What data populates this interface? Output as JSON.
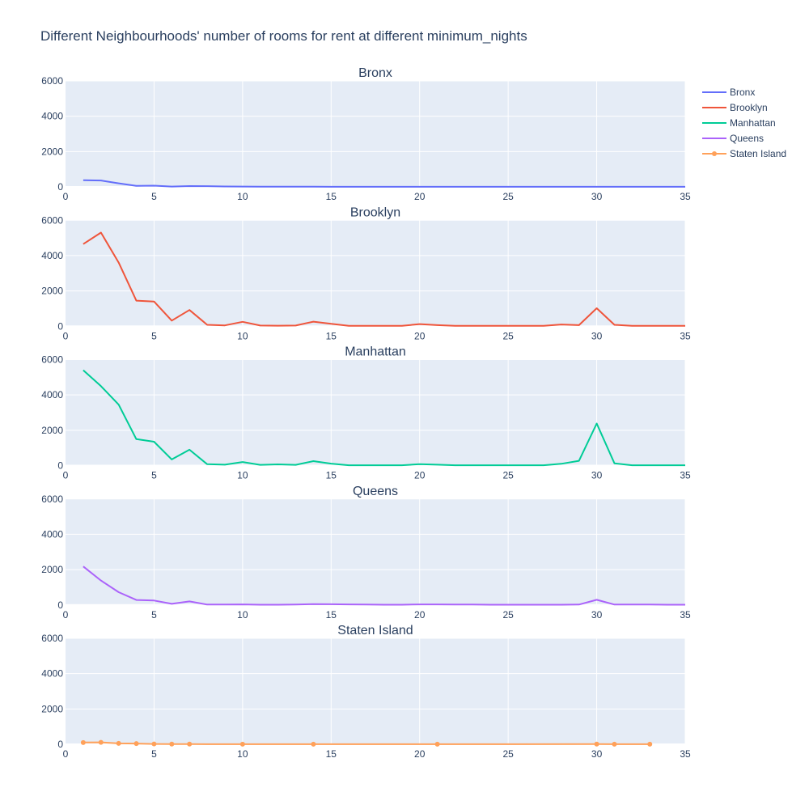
{
  "chart_data": {
    "type": "line",
    "title": "Different Neighbourhoods' number of rooms for rent at different minimum_nights",
    "xlim": [
      0,
      35
    ],
    "ylim": [
      0,
      6000
    ],
    "x_ticks": [
      0,
      5,
      10,
      15,
      20,
      25,
      30,
      35
    ],
    "y_ticks": [
      0,
      2000,
      4000,
      6000
    ],
    "grid": true,
    "legend_position": "top-right",
    "series": [
      {
        "name": "Bronx",
        "subplot_title": "Bronx",
        "color": "#636efa",
        "mode": "lines",
        "x": [
          1,
          2,
          3,
          4,
          5,
          6,
          7,
          8,
          9,
          10,
          11,
          12,
          13,
          14,
          15,
          16,
          17,
          18,
          19,
          20,
          21,
          22,
          23,
          24,
          25,
          26,
          27,
          28,
          29,
          30,
          31,
          32,
          33,
          34,
          35
        ],
        "y": [
          380,
          360,
          200,
          60,
          70,
          20,
          45,
          40,
          25,
          20,
          10,
          10,
          10,
          10,
          5,
          5,
          5,
          5,
          5,
          5,
          5,
          5,
          5,
          5,
          5,
          5,
          5,
          5,
          5,
          5,
          5,
          5,
          5,
          5,
          5
        ]
      },
      {
        "name": "Brooklyn",
        "subplot_title": "Brooklyn",
        "color": "#ef553b",
        "mode": "lines",
        "x": [
          1,
          2,
          3,
          4,
          5,
          6,
          7,
          8,
          9,
          10,
          11,
          12,
          13,
          14,
          15,
          16,
          17,
          18,
          19,
          20,
          21,
          22,
          23,
          24,
          25,
          26,
          27,
          28,
          29,
          30,
          31,
          32,
          33,
          34,
          35
        ],
        "y": [
          4650,
          5300,
          3600,
          1450,
          1400,
          320,
          920,
          80,
          50,
          250,
          40,
          30,
          40,
          260,
          140,
          20,
          20,
          20,
          20,
          120,
          60,
          20,
          20,
          20,
          20,
          20,
          20,
          100,
          60,
          1020,
          80,
          20,
          20,
          20,
          20
        ]
      },
      {
        "name": "Manhattan",
        "subplot_title": "Manhattan",
        "color": "#00cc96",
        "mode": "lines",
        "x": [
          1,
          2,
          3,
          4,
          5,
          6,
          7,
          8,
          9,
          10,
          11,
          12,
          13,
          14,
          15,
          16,
          17,
          18,
          19,
          20,
          21,
          22,
          23,
          24,
          25,
          26,
          27,
          28,
          29,
          30,
          31,
          32,
          33,
          34,
          35
        ],
        "y": [
          5400,
          4500,
          3450,
          1500,
          1350,
          350,
          900,
          80,
          50,
          200,
          40,
          70,
          40,
          250,
          110,
          20,
          20,
          20,
          20,
          80,
          50,
          20,
          20,
          20,
          20,
          20,
          20,
          100,
          270,
          2380,
          130,
          20,
          20,
          20,
          20
        ]
      },
      {
        "name": "Queens",
        "subplot_title": "Queens",
        "color": "#ab63fa",
        "mode": "lines",
        "x": [
          1,
          2,
          3,
          4,
          5,
          6,
          7,
          8,
          9,
          10,
          11,
          12,
          13,
          14,
          15,
          16,
          17,
          18,
          19,
          20,
          21,
          22,
          23,
          24,
          25,
          26,
          27,
          28,
          29,
          30,
          31,
          32,
          33,
          34,
          35
        ],
        "y": [
          2180,
          1380,
          720,
          280,
          250,
          60,
          200,
          20,
          20,
          30,
          10,
          10,
          20,
          50,
          40,
          30,
          20,
          10,
          10,
          30,
          30,
          20,
          20,
          10,
          10,
          10,
          10,
          10,
          20,
          290,
          20,
          20,
          20,
          10,
          10
        ]
      },
      {
        "name": "Staten Island",
        "subplot_title": "Staten Island",
        "color": "#ffa15a",
        "mode": "lines+markers",
        "x": [
          1,
          2,
          3,
          4,
          5,
          6,
          7,
          10,
          14,
          21,
          30,
          31,
          33
        ],
        "y": [
          100,
          110,
          50,
          40,
          20,
          10,
          10,
          5,
          5,
          5,
          10,
          5,
          5
        ]
      }
    ]
  }
}
